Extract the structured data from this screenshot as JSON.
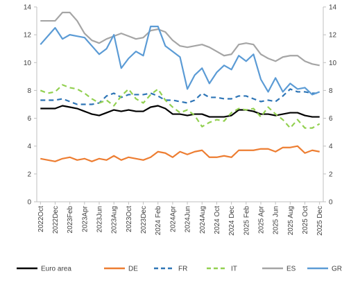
{
  "chart_data": {
    "type": "line",
    "title": "",
    "xlabel": "",
    "ylabel": "",
    "ylim": [
      0,
      14
    ],
    "yticks": [
      0,
      2,
      4,
      6,
      8,
      10,
      12,
      14
    ],
    "grid": false,
    "legend_position": "bottom",
    "x": [
      "2022 Oct",
      "2022 Nov",
      "2022 Dec",
      "2023 Jan",
      "2023 Feb",
      "2023 Mar",
      "2023 Apr",
      "2023 May",
      "2023 Jun",
      "2023 Jul",
      "2023 Aug",
      "2023 Sep",
      "2023 Oct",
      "2023 Nov",
      "2023 Dec",
      "2024 Jan",
      "2024 Feb",
      "2024 Mar",
      "2024 Apr",
      "2024 May",
      "2024 Jun",
      "2024 Jul",
      "2024 Aug",
      "2024 Sep",
      "2024 Oct",
      "2024 Nov",
      "2024 Dec",
      "2025 Jan",
      "2025 Feb",
      "2025 Mar",
      "2025 Apr",
      "2025 May",
      "2025 Jun",
      "2025 Jul",
      "2025 Aug",
      "2025 Sep",
      "2025 Oct",
      "2025 Nov",
      "2025 Dec"
    ],
    "xtick_labels": [
      "2022Oct",
      "2022Dec",
      "2023Feb",
      "2023Apr",
      "2023Jun",
      "2023Aug",
      "2023Oct",
      "2023Dec",
      "2024 Feb",
      "2024Apr",
      "2024Jun",
      "2024Aug",
      "2024 Oct",
      "2024 Dec",
      "2025 Feb",
      "2025 Apr",
      "2025 Jun",
      "2025 Aug",
      "2025 Oct",
      "2025 Dec"
    ],
    "series": [
      {
        "name": "Euro area",
        "color": "#000000",
        "dash": "solid",
        "values": [
          6.7,
          6.7,
          6.7,
          6.9,
          6.8,
          6.7,
          6.5,
          6.3,
          6.2,
          6.4,
          6.6,
          6.5,
          6.6,
          6.5,
          6.5,
          6.8,
          6.9,
          6.7,
          6.3,
          6.3,
          6.2,
          6.3,
          6.3,
          6.1,
          6.1,
          6.1,
          6.2,
          6.6,
          6.6,
          6.5,
          6.3,
          6.3,
          6.2,
          6.3,
          6.4,
          6.4,
          6.2,
          6.1,
          6.1
        ]
      },
      {
        "name": "DE",
        "color": "#ED7D31",
        "dash": "solid",
        "values": [
          3.1,
          3.0,
          2.9,
          3.1,
          3.2,
          3.0,
          3.1,
          2.9,
          3.1,
          3.0,
          3.3,
          3.0,
          3.2,
          3.1,
          3.0,
          3.2,
          3.6,
          3.5,
          3.2,
          3.6,
          3.4,
          3.6,
          3.7,
          3.2,
          3.2,
          3.3,
          3.2,
          3.7,
          3.7,
          3.7,
          3.8,
          3.8,
          3.6,
          3.9,
          3.9,
          4.0,
          3.5,
          3.7,
          3.6
        ]
      },
      {
        "name": "FR",
        "color": "#2E75B6",
        "dash": "dash",
        "values": [
          7.3,
          7.3,
          7.3,
          7.4,
          7.2,
          7.0,
          7.0,
          7.0,
          7.1,
          7.6,
          7.8,
          7.5,
          7.7,
          7.7,
          7.7,
          7.8,
          7.6,
          7.3,
          7.3,
          7.2,
          7.1,
          7.3,
          7.8,
          7.5,
          7.5,
          7.4,
          7.4,
          7.6,
          7.6,
          7.4,
          7.2,
          7.3,
          7.2,
          7.6,
          8.1,
          7.9,
          7.9,
          7.8,
          7.8
        ]
      },
      {
        "name": "IT",
        "color": "#92D050",
        "dash": "dash",
        "values": [
          8.0,
          7.8,
          7.9,
          8.4,
          8.2,
          8.1,
          7.8,
          7.4,
          7.1,
          7.3,
          6.9,
          7.6,
          8.1,
          7.4,
          7.1,
          7.7,
          8.1,
          7.3,
          6.8,
          6.4,
          6.6,
          6.2,
          5.4,
          5.7,
          5.9,
          5.8,
          6.4,
          6.7,
          6.6,
          6.7,
          6.1,
          6.8,
          6.3,
          5.9,
          5.3,
          5.9,
          5.3,
          5.3,
          5.6
        ]
      },
      {
        "name": "ES",
        "color": "#A5A5A5",
        "dash": "solid",
        "values": [
          13.0,
          13.0,
          13.0,
          13.6,
          13.6,
          13.0,
          12.1,
          11.6,
          11.4,
          11.7,
          11.9,
          12.1,
          11.9,
          11.7,
          11.8,
          12.3,
          12.4,
          12.2,
          11.6,
          11.2,
          11.1,
          11.2,
          11.3,
          11.1,
          10.8,
          10.5,
          10.6,
          11.3,
          11.4,
          11.3,
          10.6,
          10.3,
          10.1,
          10.4,
          10.5,
          10.5,
          10.1,
          9.9,
          9.8
        ]
      },
      {
        "name": "GR",
        "color": "#5B9BD5",
        "dash": "solid",
        "values": [
          11.3,
          11.9,
          12.5,
          11.7,
          12.0,
          11.9,
          11.8,
          11.2,
          10.6,
          11.0,
          12.0,
          9.6,
          10.3,
          10.8,
          10.5,
          12.6,
          12.6,
          11.2,
          10.8,
          10.4,
          8.1,
          9.1,
          9.6,
          8.5,
          9.3,
          9.8,
          9.5,
          10.5,
          10.1,
          10.6,
          8.8,
          7.9,
          8.9,
          7.9,
          8.5,
          8.1,
          8.2,
          7.7,
          7.9
        ]
      }
    ]
  }
}
